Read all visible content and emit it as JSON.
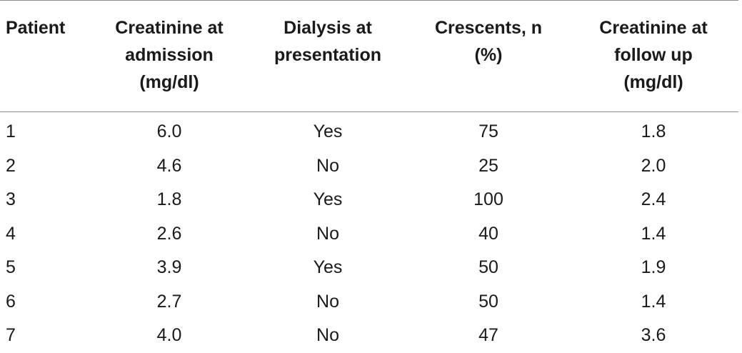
{
  "table": {
    "headers": [
      [
        "Patient"
      ],
      [
        "Creatinine at",
        "admission",
        "(mg/dl)"
      ],
      [
        "Dialysis at",
        "presentation"
      ],
      [
        "Crescents, n",
        "(%)"
      ],
      [
        "Creatinine at",
        "follow up",
        "(mg/dl)"
      ]
    ],
    "rows": [
      [
        "1",
        "6.0",
        "Yes",
        "75",
        "1.8"
      ],
      [
        "2",
        "4.6",
        "No",
        "25",
        "2.0"
      ],
      [
        "3",
        "1.8",
        "Yes",
        "100",
        "2.4"
      ],
      [
        "4",
        "2.6",
        "No",
        "40",
        "1.4"
      ],
      [
        "5",
        "3.9",
        "Yes",
        "50",
        "1.9"
      ],
      [
        "6",
        "2.7",
        "No",
        "50",
        "1.4"
      ],
      [
        "7",
        "4.0",
        "No",
        "47",
        "3.6"
      ]
    ]
  }
}
